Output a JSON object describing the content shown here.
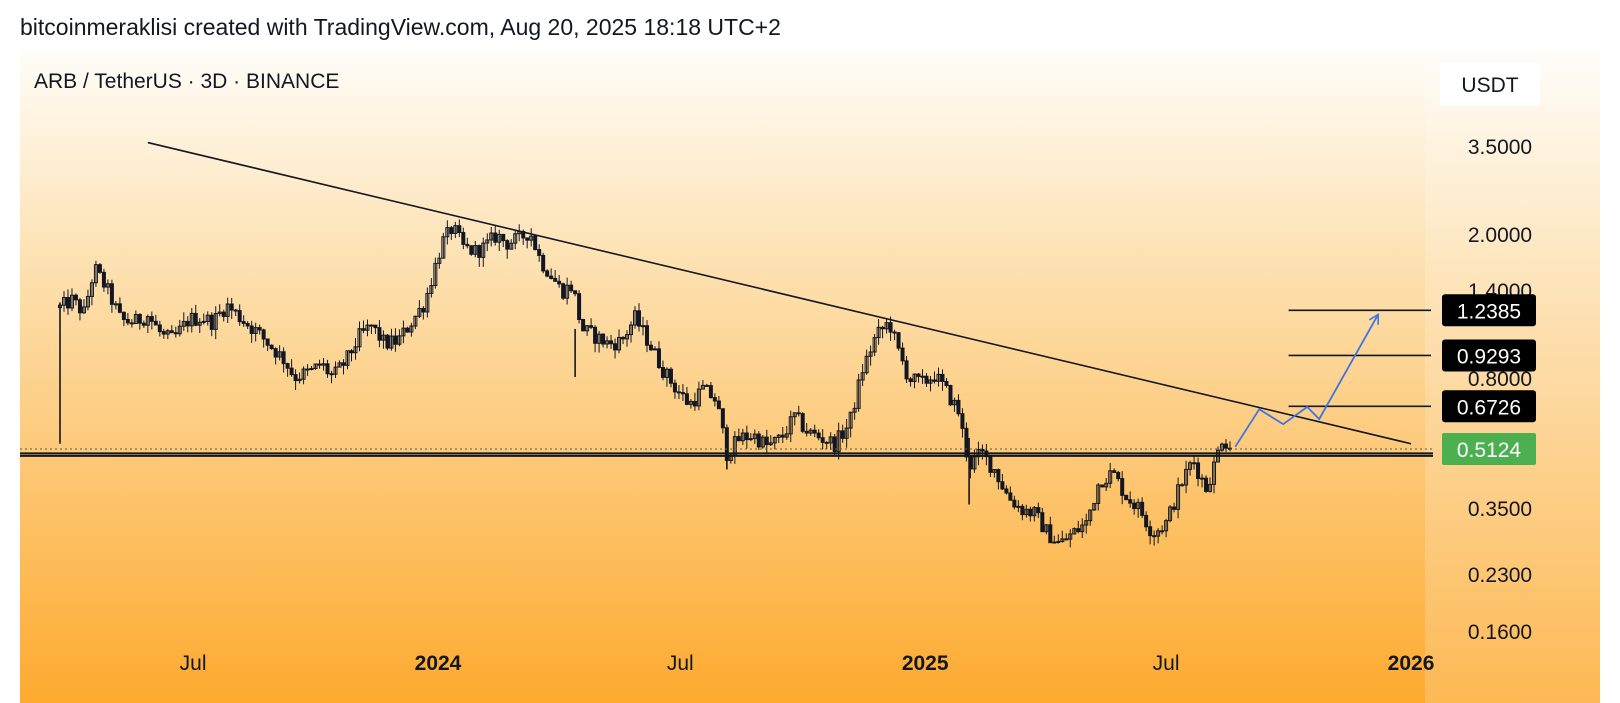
{
  "header": {
    "attribution": "bitcoinmeraklisi created with TradingView.com, Aug 20, 2025 18:18 UTC+2"
  },
  "chart": {
    "symbol_title": "ARB / TetherUS · 3D · BINANCE",
    "currency_label": "USDT"
  },
  "colors": {
    "gradient_top": "#fffdf9",
    "gradient_mid": "#fde3b6",
    "gradient_bottom": "#fdaa2f",
    "candles": "#131722",
    "projection": "#3f74e0",
    "current_price_badge": "#4caf50",
    "level_badge": "#000000"
  },
  "chart_data": {
    "type": "candlestick",
    "title": "ARB / TetherUS · 3D · BINANCE",
    "y_unit": "USDT",
    "y_scale": "log",
    "ylim": [
      0.135,
      4.4
    ],
    "xlim": [
      "2023-03-20",
      "2026-01-10"
    ],
    "x_ticks": [
      {
        "label": "Jul",
        "date": "2023-07-01",
        "bold": false
      },
      {
        "label": "2024",
        "date": "2024-01-01",
        "bold": true
      },
      {
        "label": "Jul",
        "date": "2024-07-01",
        "bold": false
      },
      {
        "label": "2025",
        "date": "2025-01-01",
        "bold": true
      },
      {
        "label": "Jul",
        "date": "2025-07-01",
        "bold": false
      },
      {
        "label": "2026",
        "date": "2026-01-01",
        "bold": true
      }
    ],
    "y_ticks": [
      {
        "label": "3.5000",
        "value": 3.5
      },
      {
        "label": "2.0000",
        "value": 2.0
      },
      {
        "label": "1.4000",
        "value": 1.4
      },
      {
        "label": "0.8000",
        "value": 0.8
      },
      {
        "label": "0.3500",
        "value": 0.35
      },
      {
        "label": "0.2300",
        "value": 0.23
      },
      {
        "label": "0.1600",
        "value": 0.16
      }
    ],
    "price_path": [
      [
        "2023-03-23",
        1.26
      ],
      [
        "2023-04-01",
        1.32
      ],
      [
        "2023-04-10",
        1.22
      ],
      [
        "2023-04-18",
        1.62
      ],
      [
        "2023-04-28",
        1.4
      ],
      [
        "2023-05-08",
        1.16
      ],
      [
        "2023-05-18",
        1.15
      ],
      [
        "2023-05-28",
        1.2
      ],
      [
        "2023-06-08",
        1.05
      ],
      [
        "2023-06-16",
        1.03
      ],
      [
        "2023-06-28",
        1.17
      ],
      [
        "2023-07-08",
        1.18
      ],
      [
        "2023-07-16",
        1.15
      ],
      [
        "2023-07-26",
        1.28
      ],
      [
        "2023-08-08",
        1.16
      ],
      [
        "2023-08-18",
        1.08
      ],
      [
        "2023-08-28",
        0.99
      ],
      [
        "2023-09-08",
        0.9
      ],
      [
        "2023-09-15",
        0.81
      ],
      [
        "2023-09-28",
        0.84
      ],
      [
        "2023-10-05",
        0.88
      ],
      [
        "2023-10-14",
        0.81
      ],
      [
        "2023-10-24",
        0.9
      ],
      [
        "2023-11-03",
        1.05
      ],
      [
        "2023-11-12",
        1.12
      ],
      [
        "2023-11-22",
        1.0
      ],
      [
        "2023-12-02",
        1.02
      ],
      [
        "2023-12-12",
        1.15
      ],
      [
        "2023-12-22",
        1.3
      ],
      [
        "2023-12-29",
        1.6
      ],
      [
        "2024-01-04",
        1.9
      ],
      [
        "2024-01-12",
        2.1
      ],
      [
        "2024-01-20",
        1.85
      ],
      [
        "2024-01-28",
        1.8
      ],
      [
        "2024-02-05",
        1.85
      ],
      [
        "2024-02-14",
        2.0
      ],
      [
        "2024-02-22",
        1.9
      ],
      [
        "2024-03-02",
        1.95
      ],
      [
        "2024-03-10",
        2.05
      ],
      [
        "2024-03-18",
        1.7
      ],
      [
        "2024-03-26",
        1.55
      ],
      [
        "2024-04-03",
        1.4
      ],
      [
        "2024-04-11",
        1.45
      ],
      [
        "2024-04-18",
        1.1
      ],
      [
        "2024-04-28",
        1.05
      ],
      [
        "2024-05-08",
        1.0
      ],
      [
        "2024-05-18",
        1.02
      ],
      [
        "2024-05-28",
        1.18
      ],
      [
        "2024-06-08",
        1.0
      ],
      [
        "2024-06-18",
        0.85
      ],
      [
        "2024-06-28",
        0.75
      ],
      [
        "2024-07-08",
        0.68
      ],
      [
        "2024-07-18",
        0.75
      ],
      [
        "2024-07-28",
        0.7
      ],
      [
        "2024-08-05",
        0.5
      ],
      [
        "2024-08-15",
        0.55
      ],
      [
        "2024-08-25",
        0.56
      ],
      [
        "2024-09-05",
        0.52
      ],
      [
        "2024-09-15",
        0.55
      ],
      [
        "2024-09-25",
        0.63
      ],
      [
        "2024-10-05",
        0.57
      ],
      [
        "2024-10-15",
        0.55
      ],
      [
        "2024-10-25",
        0.53
      ],
      [
        "2024-11-05",
        0.6
      ],
      [
        "2024-11-15",
        0.85
      ],
      [
        "2024-11-25",
        1.05
      ],
      [
        "2024-12-05",
        1.15
      ],
      [
        "2024-12-12",
        0.95
      ],
      [
        "2024-12-20",
        0.8
      ],
      [
        "2024-12-30",
        0.78
      ],
      [
        "2025-01-08",
        0.82
      ],
      [
        "2025-01-16",
        0.75
      ],
      [
        "2025-01-26",
        0.65
      ],
      [
        "2025-02-03",
        0.46
      ],
      [
        "2025-02-12",
        0.5
      ],
      [
        "2025-02-22",
        0.45
      ],
      [
        "2025-03-04",
        0.38
      ],
      [
        "2025-03-14",
        0.35
      ],
      [
        "2025-03-24",
        0.34
      ],
      [
        "2025-04-03",
        0.3
      ],
      [
        "2025-04-12",
        0.28
      ],
      [
        "2025-04-22",
        0.3
      ],
      [
        "2025-05-02",
        0.32
      ],
      [
        "2025-05-12",
        0.42
      ],
      [
        "2025-05-22",
        0.44
      ],
      [
        "2025-06-01",
        0.38
      ],
      [
        "2025-06-11",
        0.35
      ],
      [
        "2025-06-21",
        0.3
      ],
      [
        "2025-07-01",
        0.32
      ],
      [
        "2025-07-11",
        0.4
      ],
      [
        "2025-07-21",
        0.48
      ],
      [
        "2025-07-31",
        0.4
      ],
      [
        "2025-08-06",
        0.46
      ],
      [
        "2025-08-12",
        0.55
      ],
      [
        "2025-08-20",
        0.5124
      ]
    ],
    "spikes": [
      {
        "date": "2023-03-23",
        "low": 0.53,
        "high": 1.3
      },
      {
        "date": "2024-04-13",
        "low": 0.81,
        "high": 1.1
      },
      {
        "date": "2024-08-05",
        "low": 0.45,
        "high": 0.56
      },
      {
        "date": "2025-02-03",
        "low": 0.36,
        "high": 0.55
      }
    ],
    "trendline": {
      "from": [
        "2023-05-28",
        3.6
      ],
      "to": [
        "2026-01-01",
        0.53
      ]
    },
    "support_lines": [
      0.4985,
      0.4905
    ],
    "current_price_line": 0.5124,
    "horizontal_levels": [
      {
        "value": 1.2385,
        "label": "1.2385"
      },
      {
        "value": 0.9293,
        "label": "0.9293"
      },
      {
        "value": 0.6726,
        "label": "0.6726"
      }
    ],
    "current_price": {
      "value": 0.5124,
      "label": "0.5124"
    },
    "projection_path": [
      [
        "2025-08-22",
        0.52
      ],
      [
        "2025-09-09",
        0.66
      ],
      [
        "2025-09-27",
        0.6
      ],
      [
        "2025-10-15",
        0.67
      ],
      [
        "2025-10-24",
        0.62
      ],
      [
        "2025-12-07",
        1.2
      ]
    ]
  }
}
